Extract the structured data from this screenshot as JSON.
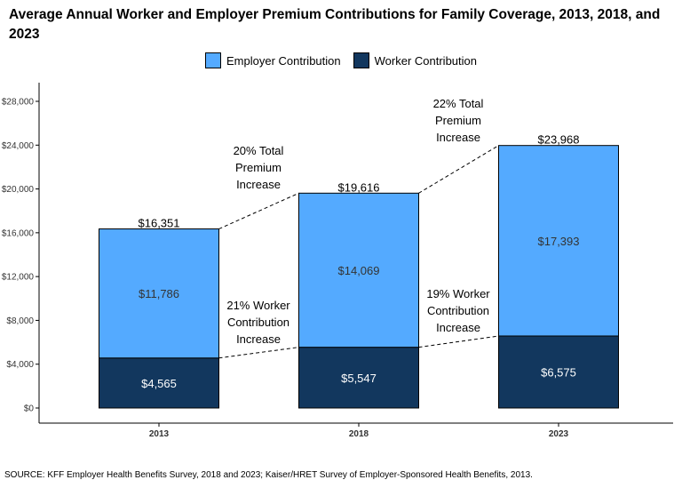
{
  "title": "Average Annual Worker and Employer Premium Contributions for Family Coverage, 2013, 2018, and 2023",
  "source": "SOURCE: KFF Employer Health Benefits Survey, 2018 and 2023; Kaiser/HRET Survey of Employer-Sponsored Health Benefits, 2013.",
  "colors": {
    "employer": "#54aaff",
    "worker": "#12375e"
  },
  "chart_data": {
    "type": "bar",
    "stacked": true,
    "categories": [
      "2013",
      "2018",
      "2023"
    ],
    "series": [
      {
        "name": "Worker Contribution",
        "values": [
          4565,
          5547,
          6575
        ],
        "labels": [
          "$4,565",
          "$5,547",
          "$6,575"
        ]
      },
      {
        "name": "Employer Contribution",
        "values": [
          11786,
          14069,
          17393
        ],
        "labels": [
          "$11,786",
          "$14,069",
          "$17,393"
        ]
      }
    ],
    "totals": [
      16351,
      19616,
      23968
    ],
    "total_labels": [
      "$16,351",
      "$19,616",
      "$23,968"
    ],
    "ylim": [
      0,
      28000
    ],
    "yticks": [
      0,
      4000,
      8000,
      12000,
      16000,
      20000,
      24000,
      28000
    ],
    "ytick_labels": [
      "$0",
      "$4,000",
      "$8,000",
      "$12,000",
      "$16,000",
      "$20,000",
      "$24,000",
      "$28,000"
    ],
    "xlabel": "",
    "ylabel": "",
    "grid": false,
    "legend": {
      "position": "top",
      "entries": [
        "Employer Contribution",
        "Worker Contribution"
      ]
    },
    "annotations": [
      {
        "text": [
          "20% Total",
          "Premium",
          "Increase"
        ],
        "between": [
          "2013",
          "2018"
        ],
        "level": "total"
      },
      {
        "text": [
          "21% Worker",
          "Contribution",
          "Increase"
        ],
        "between": [
          "2013",
          "2018"
        ],
        "level": "worker"
      },
      {
        "text": [
          "22% Total",
          "Premium",
          "Increase"
        ],
        "between": [
          "2018",
          "2023"
        ],
        "level": "total"
      },
      {
        "text": [
          "19% Worker",
          "Contribution",
          "Increase"
        ],
        "between": [
          "2018",
          "2023"
        ],
        "level": "worker"
      }
    ]
  }
}
